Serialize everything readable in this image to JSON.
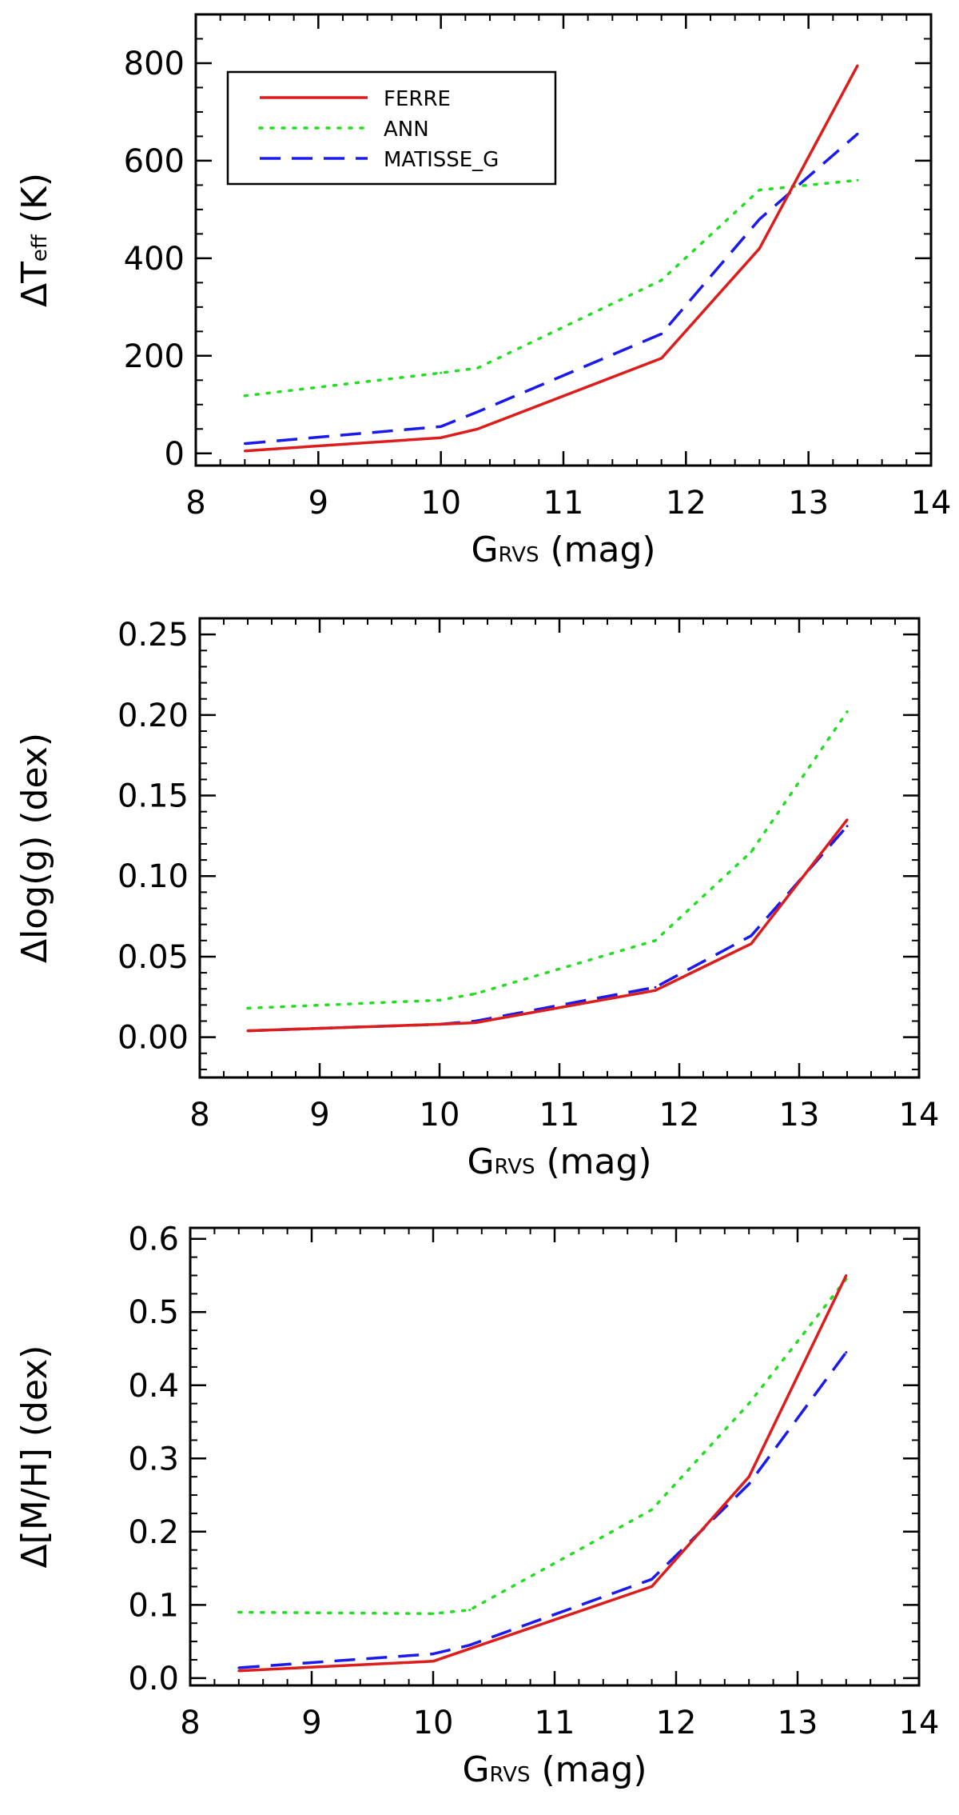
{
  "series_styles": [
    {
      "name": "FERRE",
      "color": "#dd1c1c",
      "dash": "solid"
    },
    {
      "name": "ANN",
      "color": "#22dd22",
      "dash": "dotted"
    },
    {
      "name": "MATISSE_G",
      "color": "#1a1aee",
      "dash": "dashed"
    }
  ],
  "chart_data": [
    {
      "type": "line",
      "title": "",
      "xlabel": {
        "main": "G",
        "sub": "RVS",
        "suffix": " (mag)"
      },
      "ylabel": {
        "prefix": "ΔT",
        "sub": "eff",
        "suffix": " (K)"
      },
      "xlim": [
        8,
        14
      ],
      "ylim": [
        -25,
        900
      ],
      "xticks": [
        8,
        9,
        10,
        11,
        12,
        13,
        14
      ],
      "yticks": [
        0,
        200,
        400,
        600,
        800
      ],
      "yminor": 50,
      "xtick_labels": [
        "8",
        "9",
        "10",
        "11",
        "12",
        "13",
        "14"
      ],
      "ytick_labels": [
        "0",
        "200",
        "400",
        "600",
        "800"
      ],
      "legend": {
        "position": "top-left",
        "entries": [
          "FERRE",
          "ANN",
          "MATISSE_G"
        ]
      },
      "x": [
        8.4,
        10.0,
        10.3,
        11.8,
        12.6,
        13.4
      ],
      "series": [
        {
          "name": "FERRE",
          "values": [
            5,
            32,
            50,
            195,
            420,
            795
          ]
        },
        {
          "name": "ANN",
          "values": [
            118,
            165,
            175,
            355,
            540,
            560
          ]
        },
        {
          "name": "MATISSE_G",
          "values": [
            20,
            55,
            85,
            245,
            480,
            655
          ]
        }
      ]
    },
    {
      "type": "line",
      "title": "",
      "xlabel": {
        "main": "G",
        "sub": "RVS",
        "suffix": " (mag)"
      },
      "ylabel": {
        "prefix": "Δlog(g) (dex)",
        "sub": "",
        "suffix": ""
      },
      "xlim": [
        8,
        14
      ],
      "ylim": [
        -0.025,
        0.26
      ],
      "xticks": [
        8,
        9,
        10,
        11,
        12,
        13,
        14
      ],
      "yticks": [
        0.0,
        0.05,
        0.1,
        0.15,
        0.2,
        0.25
      ],
      "yminor": 0.01,
      "xtick_labels": [
        "8",
        "9",
        "10",
        "11",
        "12",
        "13",
        "14"
      ],
      "ytick_labels": [
        "0.00",
        "0.05",
        "0.10",
        "0.15",
        "0.20",
        "0.25"
      ],
      "legend": null,
      "x": [
        8.4,
        10.0,
        10.3,
        11.8,
        12.6,
        13.4
      ],
      "series": [
        {
          "name": "FERRE",
          "values": [
            0.004,
            0.008,
            0.009,
            0.029,
            0.058,
            0.135
          ]
        },
        {
          "name": "ANN",
          "values": [
            0.018,
            0.023,
            0.027,
            0.06,
            0.115,
            0.202
          ]
        },
        {
          "name": "MATISSE_G",
          "values": [
            0.004,
            0.008,
            0.01,
            0.031,
            0.063,
            0.131
          ]
        }
      ]
    },
    {
      "type": "line",
      "title": "",
      "xlabel": {
        "main": "G",
        "sub": "RVS",
        "suffix": " (mag)"
      },
      "ylabel": {
        "prefix": "Δ[M/H] (dex)",
        "sub": "",
        "suffix": ""
      },
      "xlim": [
        8,
        14
      ],
      "ylim": [
        -0.01,
        0.615
      ],
      "xticks": [
        8,
        9,
        10,
        11,
        12,
        13,
        14
      ],
      "yticks": [
        0.0,
        0.1,
        0.2,
        0.3,
        0.4,
        0.5,
        0.6
      ],
      "yminor": 0.025,
      "xtick_labels": [
        "8",
        "9",
        "10",
        "11",
        "12",
        "13",
        "14"
      ],
      "ytick_labels": [
        "0.0",
        "0.1",
        "0.2",
        "0.3",
        "0.4",
        "0.5",
        "0.6"
      ],
      "legend": null,
      "x": [
        8.4,
        10.0,
        10.3,
        11.8,
        12.6,
        13.4
      ],
      "series": [
        {
          "name": "FERRE",
          "values": [
            0.01,
            0.023,
            0.04,
            0.125,
            0.275,
            0.55
          ]
        },
        {
          "name": "ANN",
          "values": [
            0.09,
            0.088,
            0.093,
            0.23,
            0.375,
            0.545
          ]
        },
        {
          "name": "MATISSE_G",
          "values": [
            0.014,
            0.033,
            0.045,
            0.135,
            0.265,
            0.445
          ]
        }
      ]
    }
  ]
}
